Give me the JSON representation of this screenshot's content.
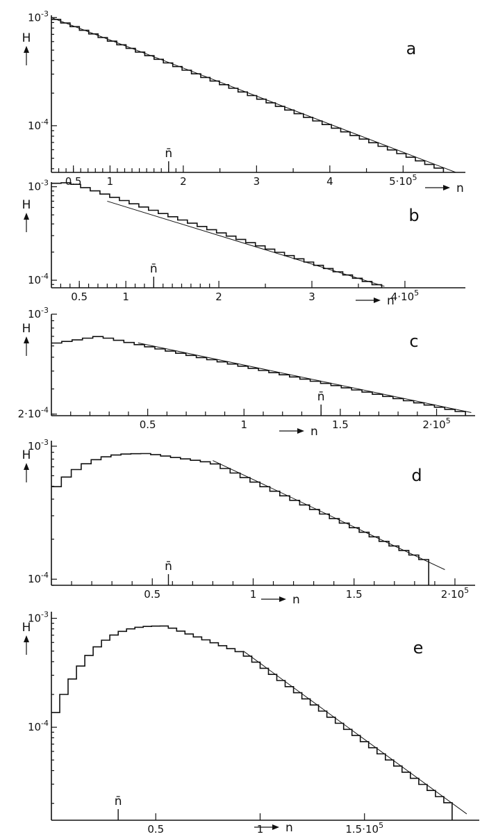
{
  "chart_data": [
    {
      "type": "line",
      "panel": "a",
      "ylabel": "H",
      "xlabel": "n",
      "y_scale": "log",
      "ylim": [
        3.7e-05,
        0.00105
      ],
      "xlim": [
        0.2,
        5.85
      ],
      "x_multiplier": "10^5",
      "y_ticks": [
        {
          "v": 0.001,
          "label": "10",
          "exp": "-3"
        },
        {
          "v": 0.0001,
          "label": "10",
          "exp": "-4"
        }
      ],
      "x_ticks": [
        {
          "v": 0.5,
          "label": "0.5"
        },
        {
          "v": 1,
          "label": "1"
        },
        {
          "v": 2,
          "label": "2"
        },
        {
          "v": 3,
          "label": "3"
        },
        {
          "v": 4,
          "label": "4"
        },
        {
          "v": 5,
          "label": "5·10",
          "exp": "5"
        }
      ],
      "minor_x": [
        0.3,
        0.4,
        0.5,
        0.6,
        0.7,
        0.8,
        0.9,
        1.1,
        1.2,
        1.3,
        1.4,
        1.5,
        1.6,
        1.7,
        1.8,
        1.9
      ],
      "minor_x2": [
        2.5,
        3.5,
        4.5
      ],
      "nbar": 1.8,
      "nbar_label": "n̄",
      "hist": {
        "x0": 0.2,
        "x1": 5.55,
        "bins": 42,
        "type": "exp",
        "y0": 0.001,
        "y1": 3.9e-05
      },
      "fit": {
        "x0": 0.2,
        "y0": 0.001,
        "x1": 5.72,
        "y1": 3.7e-05
      }
    },
    {
      "type": "line",
      "panel": "b",
      "ylabel": "H",
      "xlabel": "n",
      "y_scale": "log",
      "ylim": [
        8.3e-05,
        0.00112
      ],
      "xlim": [
        0.2,
        4.65
      ],
      "x_multiplier": "10^5",
      "y_ticks": [
        {
          "v": 0.001,
          "label": "10",
          "exp": "-3"
        },
        {
          "v": 0.0001,
          "label": "10",
          "exp": "-4"
        }
      ],
      "x_ticks": [
        {
          "v": 0.5,
          "label": "0.5"
        },
        {
          "v": 1,
          "label": "1"
        },
        {
          "v": 2,
          "label": "2"
        },
        {
          "v": 3,
          "label": "3"
        },
        {
          "v": 4,
          "label": "4·10",
          "exp": "5"
        }
      ],
      "minor_x": [
        0.3,
        0.4,
        0.5,
        0.6,
        0.7,
        0.8,
        0.9,
        1.1,
        1.2,
        1.3,
        1.4,
        1.5,
        1.6,
        1.7,
        1.8,
        1.9
      ],
      "minor_x2": [
        2.5,
        3.5
      ],
      "nbar": 1.3,
      "nbar_label": "n̄",
      "hist": {
        "x0": 0.2,
        "x1": 3.75,
        "bins": 34,
        "type": "peakexp",
        "peak_x": 0.4,
        "y_start": 0.00108,
        "y_peak": 0.00111,
        "y1": 8.6e-05
      },
      "fit": {
        "x0": 0.8,
        "y0": 0.0007,
        "x1": 3.78,
        "y1": 8.6e-05
      }
    },
    {
      "type": "line",
      "panel": "c",
      "ylabel": "H",
      "xlabel": "n",
      "y_scale": "log",
      "ylim": [
        0.000195,
        0.001
      ],
      "xlim": [
        0.0,
        2.2
      ],
      "x_multiplier": "10^5",
      "y_ticks": [
        {
          "v": 0.001,
          "label": "10",
          "exp": "-3"
        },
        {
          "v": 0.0002,
          "label": "2·10",
          "exp": "-4"
        }
      ],
      "x_ticks": [
        {
          "v": 0.5,
          "label": "0.5"
        },
        {
          "v": 1,
          "label": "1"
        },
        {
          "v": 1.5,
          "label": "1.5"
        },
        {
          "v": 2,
          "label": "2·10",
          "exp": "5"
        }
      ],
      "minor_x": [
        0.1,
        0.2,
        0.3,
        0.4,
        0.6,
        0.7,
        0.8,
        0.9,
        1.1,
        1.2,
        1.3,
        1.4,
        1.6,
        1.7,
        1.8,
        1.9
      ],
      "minor_x2": [],
      "nbar": 1.4,
      "nbar_label": "n̄",
      "hist": {
        "x0": 0.0,
        "x1": 2.15,
        "bins": 40,
        "type": "peakexp",
        "peak_x": 0.25,
        "y_start": 0.00062,
        "y_peak": 0.0007,
        "y1": 0.000205
      },
      "fit": {
        "x0": 0.45,
        "y0": 0.00063,
        "x1": 2.18,
        "y1": 0.000205
      }
    },
    {
      "type": "line",
      "panel": "d",
      "ylabel": "H",
      "xlabel": "n",
      "y_scale": "log",
      "ylim": [
        9e-05,
        0.0011
      ],
      "xlim": [
        0.0,
        2.1
      ],
      "x_multiplier": "10^5",
      "y_ticks": [
        {
          "v": 0.001,
          "label": "10",
          "exp": "-3"
        },
        {
          "v": 0.0001,
          "label": "10",
          "exp": "-4"
        }
      ],
      "x_ticks": [
        {
          "v": 0.5,
          "label": "0.5"
        },
        {
          "v": 1,
          "label": "1"
        },
        {
          "v": 1.5,
          "label": "1.5"
        },
        {
          "v": 2,
          "label": "2·10",
          "exp": "5"
        }
      ],
      "minor_x": [
        0.1,
        0.2,
        0.3,
        0.4,
        0.6,
        0.7,
        0.8,
        0.9,
        1.1,
        1.2,
        1.3,
        1.4,
        1.6,
        1.7,
        1.8,
        1.9
      ],
      "minor_x2": [],
      "nbar": 0.58,
      "nbar_label": "n̄",
      "hist": {
        "x0": 0.0,
        "x1": 1.87,
        "bins": 38,
        "type": "rise",
        "peak_x": 0.48,
        "plateau_end": 0.8,
        "y_start": 0.00045,
        "y_peak": 0.00088,
        "y_knee": 0.00075,
        "y1": 0.000135
      },
      "fit": {
        "x0": 0.8,
        "y0": 0.00078,
        "x1": 1.95,
        "y1": 0.000118
      }
    },
    {
      "type": "line",
      "panel": "e",
      "ylabel": "H",
      "xlabel": "n",
      "y_scale": "log",
      "ylim": [
        1.4e-05,
        0.00115
      ],
      "xlim": [
        0.0,
        2.05
      ],
      "x_multiplier": "10^5",
      "y_ticks": [
        {
          "v": 0.001,
          "label": "10",
          "exp": "-3"
        },
        {
          "v": 0.0001,
          "label": "10",
          "exp": "-4"
        }
      ],
      "x_ticks": [
        {
          "v": 0.5,
          "label": "0.5"
        },
        {
          "v": 1,
          "label": "1"
        },
        {
          "v": 1.5,
          "label": "1.5·10",
          "exp": "5"
        }
      ],
      "minor_x": [],
      "minor_x2": [],
      "nbar": 0.32,
      "nbar_label": "n̄",
      "hist": {
        "x0": 0.0,
        "x1": 1.92,
        "bins": 48,
        "type": "rise",
        "peak_x": 0.55,
        "plateau_end": 0.92,
        "y_start": 0.00011,
        "y_peak": 0.00085,
        "y_knee": 0.00048,
        "y1": 1.9e-05
      },
      "fit": {
        "x0": 0.92,
        "y0": 0.0005,
        "x1": 1.99,
        "y1": 1.6e-05
      }
    }
  ]
}
